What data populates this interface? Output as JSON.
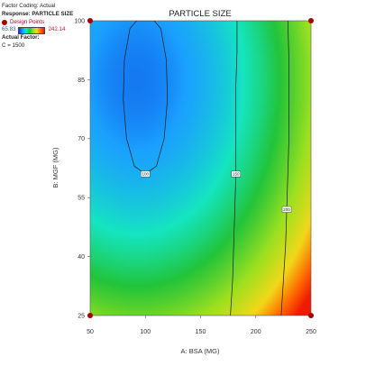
{
  "legend": {
    "factor_coding": "Factor Coding: Actual",
    "response": "Response: PARTICLE SIZE",
    "design_points": "Design Points",
    "min_value": "65.83",
    "max_value": "242.14",
    "actual_factor": "Actual Factor:",
    "actual_factor_value": "C = 1500"
  },
  "chart_data": {
    "type": "heatmap",
    "subtype": "contour",
    "title": "PARTICLE SIZE",
    "xlabel": "A: BSA (MG)",
    "ylabel": "B: MGF (MG)",
    "xlim": [
      50,
      250
    ],
    "ylim": [
      25,
      100
    ],
    "x_ticks": [
      "50",
      "100",
      "150",
      "200",
      "250"
    ],
    "y_ticks": [
      "25",
      "40",
      "55",
      "70",
      "85",
      "100"
    ],
    "grid": false,
    "colorscale_range": [
      65.83,
      242.14
    ],
    "contour_lines": [
      {
        "label": "100",
        "level": 100,
        "points": [
          [
            100,
            61
          ],
          [
            90,
            63
          ],
          [
            83,
            70
          ],
          [
            80,
            80
          ],
          [
            81,
            90
          ],
          [
            86,
            98
          ],
          [
            92,
            100
          ],
          [
            108,
            100
          ],
          [
            114,
            98
          ],
          [
            119,
            90
          ],
          [
            120,
            80
          ],
          [
            117,
            70
          ],
          [
            110,
            63
          ],
          [
            100,
            61
          ]
        ]
      },
      {
        "label": "150",
        "level": 150,
        "points": [
          [
            183,
            100
          ],
          [
            183,
            92
          ],
          [
            182,
            84
          ],
          [
            182,
            76
          ],
          [
            182,
            70
          ],
          [
            182,
            61
          ],
          [
            181,
            52
          ],
          [
            180,
            43
          ],
          [
            179,
            34
          ],
          [
            177,
            25
          ]
        ]
      },
      {
        "label": "200",
        "level": 200,
        "points": [
          [
            229,
            100
          ],
          [
            230,
            90
          ],
          [
            230,
            80
          ],
          [
            230,
            70
          ],
          [
            229,
            61
          ],
          [
            228,
            52
          ],
          [
            227,
            43
          ],
          [
            225,
            34
          ],
          [
            223,
            25
          ]
        ]
      }
    ],
    "design_points": [
      [
        50,
        100
      ],
      [
        250,
        100
      ],
      [
        50,
        25
      ],
      [
        250,
        25
      ]
    ],
    "colors": {
      "low": "#0a30d6",
      "mid": "#22c43a",
      "high": "#f01a00",
      "design_point": "#a80000"
    }
  }
}
